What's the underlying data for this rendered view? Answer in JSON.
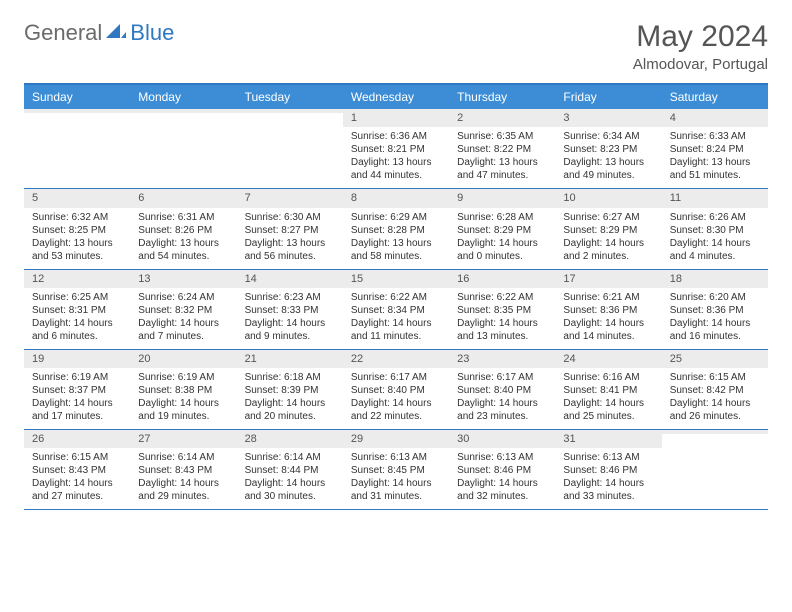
{
  "logo": {
    "part1": "General",
    "part2": "Blue"
  },
  "title": "May 2024",
  "location": "Almodovar, Portugal",
  "colors": {
    "header_bg": "#3c8dd6",
    "border": "#2f78c2",
    "daynum_bg": "#ececec",
    "text": "#333333",
    "muted": "#555555"
  },
  "day_names": [
    "Sunday",
    "Monday",
    "Tuesday",
    "Wednesday",
    "Thursday",
    "Friday",
    "Saturday"
  ],
  "weeks": [
    [
      {
        "n": "",
        "l1": "",
        "l2": "",
        "l3": "",
        "l4": ""
      },
      {
        "n": "",
        "l1": "",
        "l2": "",
        "l3": "",
        "l4": ""
      },
      {
        "n": "",
        "l1": "",
        "l2": "",
        "l3": "",
        "l4": ""
      },
      {
        "n": "1",
        "l1": "Sunrise: 6:36 AM",
        "l2": "Sunset: 8:21 PM",
        "l3": "Daylight: 13 hours",
        "l4": "and 44 minutes."
      },
      {
        "n": "2",
        "l1": "Sunrise: 6:35 AM",
        "l2": "Sunset: 8:22 PM",
        "l3": "Daylight: 13 hours",
        "l4": "and 47 minutes."
      },
      {
        "n": "3",
        "l1": "Sunrise: 6:34 AM",
        "l2": "Sunset: 8:23 PM",
        "l3": "Daylight: 13 hours",
        "l4": "and 49 minutes."
      },
      {
        "n": "4",
        "l1": "Sunrise: 6:33 AM",
        "l2": "Sunset: 8:24 PM",
        "l3": "Daylight: 13 hours",
        "l4": "and 51 minutes."
      }
    ],
    [
      {
        "n": "5",
        "l1": "Sunrise: 6:32 AM",
        "l2": "Sunset: 8:25 PM",
        "l3": "Daylight: 13 hours",
        "l4": "and 53 minutes."
      },
      {
        "n": "6",
        "l1": "Sunrise: 6:31 AM",
        "l2": "Sunset: 8:26 PM",
        "l3": "Daylight: 13 hours",
        "l4": "and 54 minutes."
      },
      {
        "n": "7",
        "l1": "Sunrise: 6:30 AM",
        "l2": "Sunset: 8:27 PM",
        "l3": "Daylight: 13 hours",
        "l4": "and 56 minutes."
      },
      {
        "n": "8",
        "l1": "Sunrise: 6:29 AM",
        "l2": "Sunset: 8:28 PM",
        "l3": "Daylight: 13 hours",
        "l4": "and 58 minutes."
      },
      {
        "n": "9",
        "l1": "Sunrise: 6:28 AM",
        "l2": "Sunset: 8:29 PM",
        "l3": "Daylight: 14 hours",
        "l4": "and 0 minutes."
      },
      {
        "n": "10",
        "l1": "Sunrise: 6:27 AM",
        "l2": "Sunset: 8:29 PM",
        "l3": "Daylight: 14 hours",
        "l4": "and 2 minutes."
      },
      {
        "n": "11",
        "l1": "Sunrise: 6:26 AM",
        "l2": "Sunset: 8:30 PM",
        "l3": "Daylight: 14 hours",
        "l4": "and 4 minutes."
      }
    ],
    [
      {
        "n": "12",
        "l1": "Sunrise: 6:25 AM",
        "l2": "Sunset: 8:31 PM",
        "l3": "Daylight: 14 hours",
        "l4": "and 6 minutes."
      },
      {
        "n": "13",
        "l1": "Sunrise: 6:24 AM",
        "l2": "Sunset: 8:32 PM",
        "l3": "Daylight: 14 hours",
        "l4": "and 7 minutes."
      },
      {
        "n": "14",
        "l1": "Sunrise: 6:23 AM",
        "l2": "Sunset: 8:33 PM",
        "l3": "Daylight: 14 hours",
        "l4": "and 9 minutes."
      },
      {
        "n": "15",
        "l1": "Sunrise: 6:22 AM",
        "l2": "Sunset: 8:34 PM",
        "l3": "Daylight: 14 hours",
        "l4": "and 11 minutes."
      },
      {
        "n": "16",
        "l1": "Sunrise: 6:22 AM",
        "l2": "Sunset: 8:35 PM",
        "l3": "Daylight: 14 hours",
        "l4": "and 13 minutes."
      },
      {
        "n": "17",
        "l1": "Sunrise: 6:21 AM",
        "l2": "Sunset: 8:36 PM",
        "l3": "Daylight: 14 hours",
        "l4": "and 14 minutes."
      },
      {
        "n": "18",
        "l1": "Sunrise: 6:20 AM",
        "l2": "Sunset: 8:36 PM",
        "l3": "Daylight: 14 hours",
        "l4": "and 16 minutes."
      }
    ],
    [
      {
        "n": "19",
        "l1": "Sunrise: 6:19 AM",
        "l2": "Sunset: 8:37 PM",
        "l3": "Daylight: 14 hours",
        "l4": "and 17 minutes."
      },
      {
        "n": "20",
        "l1": "Sunrise: 6:19 AM",
        "l2": "Sunset: 8:38 PM",
        "l3": "Daylight: 14 hours",
        "l4": "and 19 minutes."
      },
      {
        "n": "21",
        "l1": "Sunrise: 6:18 AM",
        "l2": "Sunset: 8:39 PM",
        "l3": "Daylight: 14 hours",
        "l4": "and 20 minutes."
      },
      {
        "n": "22",
        "l1": "Sunrise: 6:17 AM",
        "l2": "Sunset: 8:40 PM",
        "l3": "Daylight: 14 hours",
        "l4": "and 22 minutes."
      },
      {
        "n": "23",
        "l1": "Sunrise: 6:17 AM",
        "l2": "Sunset: 8:40 PM",
        "l3": "Daylight: 14 hours",
        "l4": "and 23 minutes."
      },
      {
        "n": "24",
        "l1": "Sunrise: 6:16 AM",
        "l2": "Sunset: 8:41 PM",
        "l3": "Daylight: 14 hours",
        "l4": "and 25 minutes."
      },
      {
        "n": "25",
        "l1": "Sunrise: 6:15 AM",
        "l2": "Sunset: 8:42 PM",
        "l3": "Daylight: 14 hours",
        "l4": "and 26 minutes."
      }
    ],
    [
      {
        "n": "26",
        "l1": "Sunrise: 6:15 AM",
        "l2": "Sunset: 8:43 PM",
        "l3": "Daylight: 14 hours",
        "l4": "and 27 minutes."
      },
      {
        "n": "27",
        "l1": "Sunrise: 6:14 AM",
        "l2": "Sunset: 8:43 PM",
        "l3": "Daylight: 14 hours",
        "l4": "and 29 minutes."
      },
      {
        "n": "28",
        "l1": "Sunrise: 6:14 AM",
        "l2": "Sunset: 8:44 PM",
        "l3": "Daylight: 14 hours",
        "l4": "and 30 minutes."
      },
      {
        "n": "29",
        "l1": "Sunrise: 6:13 AM",
        "l2": "Sunset: 8:45 PM",
        "l3": "Daylight: 14 hours",
        "l4": "and 31 minutes."
      },
      {
        "n": "30",
        "l1": "Sunrise: 6:13 AM",
        "l2": "Sunset: 8:46 PM",
        "l3": "Daylight: 14 hours",
        "l4": "and 32 minutes."
      },
      {
        "n": "31",
        "l1": "Sunrise: 6:13 AM",
        "l2": "Sunset: 8:46 PM",
        "l3": "Daylight: 14 hours",
        "l4": "and 33 minutes."
      },
      {
        "n": "",
        "l1": "",
        "l2": "",
        "l3": "",
        "l4": ""
      }
    ]
  ]
}
